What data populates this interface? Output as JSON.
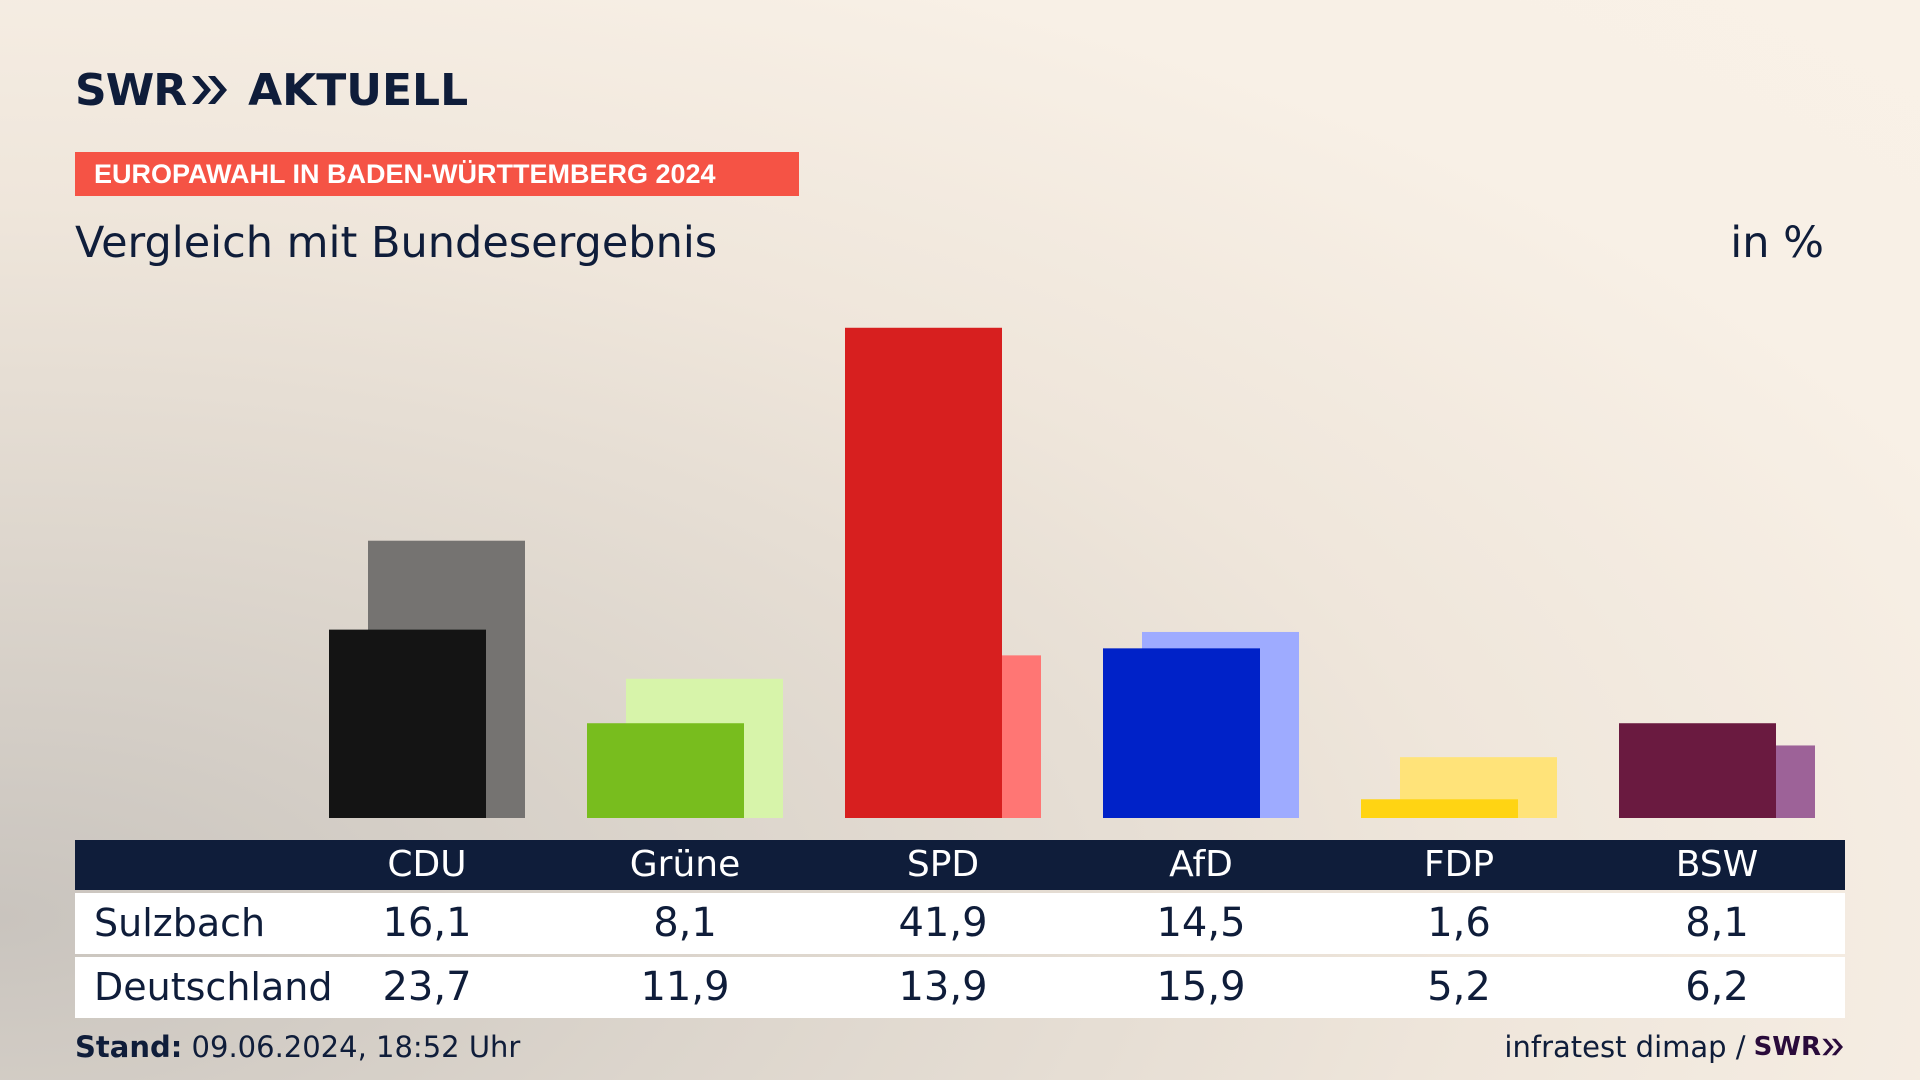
{
  "header": {
    "logo_swr": "SWR",
    "logo_aktuell": "AKTUELL",
    "banner": "EUROPAWAHL IN BADEN-WÜRTTEMBERG 2024",
    "subtitle": "Vergleich mit Bundesergebnis",
    "unit": "in %"
  },
  "chart_data": {
    "type": "bar",
    "categories": [
      "CDU",
      "Grüne",
      "SPD",
      "AfD",
      "FDP",
      "BSW"
    ],
    "series": [
      {
        "name": "Sulzbach",
        "values": [
          16.1,
          8.1,
          41.9,
          14.5,
          1.6,
          8.1
        ],
        "colors": [
          "#141414",
          "#78bd1e",
          "#d71f1f",
          "#0022c8",
          "#ffd413",
          "#6a1a40"
        ]
      },
      {
        "name": "Deutschland",
        "values": [
          23.7,
          11.9,
          13.9,
          15.9,
          5.2,
          6.2
        ],
        "colors": [
          "#757371",
          "#d7f4aa",
          "#ff7674",
          "#9eabff",
          "#ffe379",
          "#9d6298"
        ]
      }
    ],
    "grid": false
  },
  "table": {
    "headers": [
      "CDU",
      "Grüne",
      "SPD",
      "AfD",
      "FDP",
      "BSW"
    ],
    "rows": [
      {
        "label": "Sulzbach",
        "values": [
          "16,1",
          "8,1",
          "41,9",
          "14,5",
          "1,6",
          "8,1"
        ]
      },
      {
        "label": "Deutschland",
        "values": [
          "23,7",
          "11,9",
          "13,9",
          "15,9",
          "5,2",
          "6,2"
        ]
      }
    ]
  },
  "footer": {
    "stand_label": "Stand:",
    "stand_value": " 09.06.2024, 18:52 Uhr",
    "source": "infratest dimap /",
    "source_logo": "SWR"
  }
}
